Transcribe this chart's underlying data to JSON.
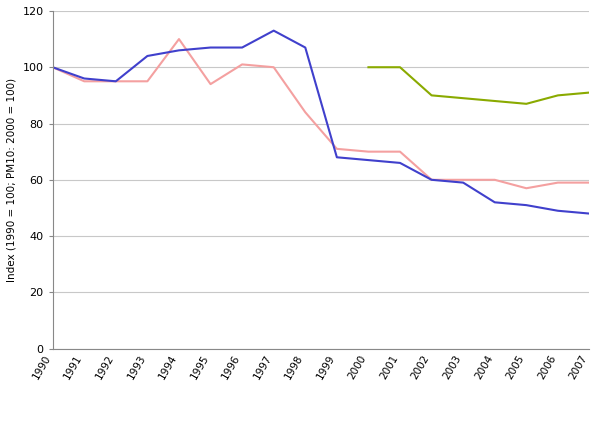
{
  "years_acid_ozone": [
    1990,
    1991,
    1992,
    1993,
    1994,
    1995,
    1996,
    1997,
    1998,
    1999,
    2000,
    2001,
    2002,
    2003,
    2004,
    2005,
    2006,
    2007
  ],
  "acidifying": [
    100,
    95,
    95,
    95,
    110,
    94,
    101,
    100,
    84,
    71,
    70,
    70,
    60,
    60,
    60,
    57,
    59,
    59
  ],
  "ozone": [
    100,
    96,
    95,
    104,
    106,
    107,
    107,
    113,
    107,
    68,
    67,
    66,
    60,
    59,
    52,
    51,
    49,
    48
  ],
  "years_pm": [
    2000,
    2001,
    2002,
    2003,
    2004,
    2005,
    2006,
    2007
  ],
  "pm": [
    100,
    100,
    90,
    89,
    88,
    87,
    90,
    91
  ],
  "color_acid": "#f4a0a0",
  "color_ozone": "#4040cc",
  "color_pm": "#8aaa00",
  "ylabel": "Index (1990 = 100; PM10: 2000 = 100)",
  "ylim": [
    0,
    120
  ],
  "yticks": [
    0,
    20,
    40,
    60,
    80,
    100,
    120
  ],
  "background_color": "#ffffff",
  "grid_color": "#c8c8c8"
}
